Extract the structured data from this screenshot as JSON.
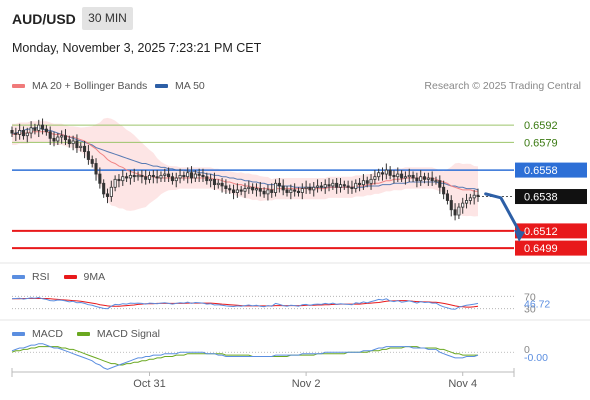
{
  "header": {
    "symbol": "AUD/USD",
    "timeframe": "30 MIN",
    "datetime": "Monday, November 3, 2025 7:23:21 PM CET"
  },
  "legend": {
    "ma20": "MA 20 + Bollinger Bands",
    "ma50": "MA 50",
    "credit": "Research © 2025 Trading Central"
  },
  "colors": {
    "ma20": "#f07a7a",
    "ma50": "#2d5fa6",
    "band_fill": "#fde0e0",
    "candle": "#333333",
    "green_level": "#9cc46a",
    "blue_level": "#2d6fd6",
    "red_level": "#e8191b",
    "current_price": "#111111",
    "rsi": "#5b8ee0",
    "rsi_ma": "#e8191b",
    "macd": "#5b8ee0",
    "macd_signal": "#6aa820"
  },
  "chart_data": [
    {
      "type": "candlestick",
      "panel": "price",
      "ylim": [
        0.649,
        0.6611
      ],
      "x_ticks": [
        {
          "label": "Oct 31",
          "index": 36
        },
        {
          "label": "Nov 2",
          "index": 77
        },
        {
          "label": "Nov 4",
          "index": 118
        }
      ],
      "levels": [
        {
          "value": 0.6592,
          "label": "0.6592",
          "style": "green"
        },
        {
          "value": 0.6579,
          "label": "0.6579",
          "style": "green"
        },
        {
          "value": 0.6558,
          "label": "0.6558",
          "style": "blue"
        },
        {
          "value": 0.6538,
          "label": "0.6538",
          "style": "current"
        },
        {
          "value": 0.6512,
          "label": "0.6512",
          "style": "red"
        },
        {
          "value": 0.6499,
          "label": "0.6499",
          "style": "red"
        }
      ],
      "forecast_arrow": {
        "from_index": 124,
        "from_value": 0.654,
        "mid_index": 128,
        "mid_value": 0.6537,
        "to_index": 133,
        "to_value": 0.6506
      },
      "close": [
        0.6586,
        0.6585,
        0.6588,
        0.6584,
        0.6586,
        0.659,
        0.6588,
        0.6592,
        0.6589,
        0.6587,
        0.6582,
        0.658,
        0.6583,
        0.6584,
        0.6581,
        0.6578,
        0.658,
        0.6575,
        0.6576,
        0.6572,
        0.6566,
        0.6563,
        0.6555,
        0.6548,
        0.654,
        0.6538,
        0.6545,
        0.6551,
        0.655,
        0.6553,
        0.6552,
        0.6554,
        0.6553,
        0.6554,
        0.6553,
        0.6551,
        0.6554,
        0.6553,
        0.6552,
        0.6554,
        0.6555,
        0.6553,
        0.655,
        0.6552,
        0.6554,
        0.6553,
        0.6556,
        0.6552,
        0.6555,
        0.6554,
        0.6553,
        0.655,
        0.6551,
        0.6547,
        0.6548,
        0.6546,
        0.6544,
        0.6543,
        0.6541,
        0.6543,
        0.6542,
        0.6544,
        0.6545,
        0.6543,
        0.6544,
        0.6542,
        0.654,
        0.6543,
        0.6541,
        0.6548,
        0.6546,
        0.6543,
        0.6541,
        0.6543,
        0.6542,
        0.6541,
        0.6544,
        0.6545,
        0.6543,
        0.6545,
        0.6546,
        0.6545,
        0.6547,
        0.6546,
        0.6548,
        0.6545,
        0.6547,
        0.6546,
        0.6545,
        0.6544,
        0.6548,
        0.6547,
        0.655,
        0.6548,
        0.6551,
        0.6553,
        0.6556,
        0.6555,
        0.6558,
        0.6554,
        0.6553,
        0.6555,
        0.6552,
        0.6553,
        0.6554,
        0.6552,
        0.655,
        0.6553,
        0.6551,
        0.6552,
        0.655,
        0.655,
        0.6545,
        0.654,
        0.6535,
        0.6528,
        0.6524,
        0.653,
        0.6533,
        0.6535,
        0.6537,
        0.6539,
        0.6538
      ],
      "ma20": [
        0.6585,
        0.6585,
        0.6586,
        0.6586,
        0.6586,
        0.6587,
        0.6587,
        0.6587,
        0.6587,
        0.6587,
        0.6586,
        0.6585,
        0.6585,
        0.6585,
        0.6584,
        0.6583,
        0.6583,
        0.6582,
        0.6581,
        0.658,
        0.6578,
        0.6576,
        0.6574,
        0.6571,
        0.6569,
        0.6566,
        0.6564,
        0.6563,
        0.6561,
        0.656,
        0.6558,
        0.6557,
        0.6556,
        0.6555,
        0.6554,
        0.6553,
        0.6553,
        0.6553,
        0.6552,
        0.6552,
        0.6552,
        0.6552,
        0.6552,
        0.6552,
        0.6552,
        0.6552,
        0.6552,
        0.6552,
        0.6552,
        0.6552,
        0.6552,
        0.6552,
        0.6552,
        0.6551,
        0.6551,
        0.655,
        0.6549,
        0.6549,
        0.6548,
        0.6547,
        0.6547,
        0.6546,
        0.6546,
        0.6545,
        0.6545,
        0.6544,
        0.6544,
        0.6544,
        0.6543,
        0.6544,
        0.6544,
        0.6544,
        0.6544,
        0.6544,
        0.6544,
        0.6544,
        0.6544,
        0.6544,
        0.6544,
        0.6544,
        0.6544,
        0.6544,
        0.6544,
        0.6545,
        0.6545,
        0.6545,
        0.6545,
        0.6545,
        0.6545,
        0.6545,
        0.6546,
        0.6546,
        0.6546,
        0.6547,
        0.6547,
        0.6548,
        0.6548,
        0.6549,
        0.655,
        0.655,
        0.6551,
        0.6551,
        0.6551,
        0.6552,
        0.6552,
        0.6552,
        0.6552,
        0.6552,
        0.6552,
        0.6552,
        0.6552,
        0.6551,
        0.655,
        0.6549,
        0.6548,
        0.6546,
        0.6545,
        0.6544,
        0.6543,
        0.6543,
        0.6543,
        0.6542,
        0.6542
      ],
      "ma50": [
        0.6585,
        0.6586,
        0.6587,
        0.6588,
        0.6589,
        0.6589,
        0.659,
        0.659,
        0.6589,
        0.6588,
        0.6588,
        0.6587,
        0.6586,
        0.6585,
        0.6584,
        0.6583,
        0.6582,
        0.6581,
        0.658,
        0.6579,
        0.6578,
        0.6577,
        0.6575,
        0.6574,
        0.6573,
        0.6572,
        0.6571,
        0.657,
        0.6569,
        0.6568,
        0.6567,
        0.6566,
        0.6565,
        0.6564,
        0.6563,
        0.6563,
        0.6562,
        0.6561,
        0.6561,
        0.656,
        0.656,
        0.6559,
        0.6559,
        0.6558,
        0.6558,
        0.6558,
        0.6557,
        0.6557,
        0.6557,
        0.6556,
        0.6556,
        0.6555,
        0.6555,
        0.6554,
        0.6554,
        0.6553,
        0.6553,
        0.6552,
        0.6552,
        0.6551,
        0.6551,
        0.655,
        0.655,
        0.6549,
        0.6549,
        0.6548,
        0.6548,
        0.6547,
        0.6547,
        0.6547,
        0.6546,
        0.6546,
        0.6546,
        0.6546,
        0.6545,
        0.6545,
        0.6545,
        0.6545,
        0.6545,
        0.6545,
        0.6545,
        0.6545,
        0.6545,
        0.6545,
        0.6545,
        0.6545,
        0.6545,
        0.6545,
        0.6545,
        0.6545,
        0.6545,
        0.6545,
        0.6545,
        0.6546,
        0.6546,
        0.6546,
        0.6546,
        0.6547,
        0.6547,
        0.6547,
        0.6548,
        0.6548,
        0.6548,
        0.6548,
        0.6549,
        0.6549,
        0.6549,
        0.6549,
        0.6549,
        0.6549,
        0.6549,
        0.6549,
        0.6548,
        0.6548,
        0.6547,
        0.6546,
        0.6546,
        0.6545,
        0.6545,
        0.6544,
        0.6544,
        0.6544,
        0.6543
      ]
    },
    {
      "type": "line",
      "panel": "rsi",
      "series_labels": [
        "RSI",
        "9MA"
      ],
      "ylim": [
        0,
        100
      ],
      "levels": [
        70,
        30
      ],
      "level_labels": [
        "70",
        "30"
      ],
      "current_label": "46.72",
      "series": [
        {
          "name": "RSI",
          "values": [
            62,
            63,
            64,
            61,
            63,
            65,
            64,
            66,
            62,
            60,
            56,
            55,
            58,
            57,
            55,
            52,
            54,
            49,
            50,
            47,
            43,
            41,
            37,
            34,
            31,
            30,
            38,
            44,
            43,
            46,
            45,
            48,
            47,
            48,
            47,
            45,
            48,
            47,
            46,
            48,
            49,
            47,
            45,
            47,
            49,
            48,
            51,
            47,
            50,
            49,
            48,
            45,
            46,
            42,
            43,
            41,
            39,
            38,
            37,
            39,
            38,
            40,
            42,
            39,
            41,
            38,
            36,
            40,
            38,
            47,
            44,
            40,
            38,
            41,
            40,
            38,
            43,
            44,
            41,
            44,
            45,
            44,
            47,
            45,
            48,
            44,
            46,
            45,
            44,
            43,
            49,
            47,
            52,
            49,
            53,
            56,
            60,
            58,
            62,
            55,
            53,
            56,
            51,
            53,
            55,
            52,
            48,
            53,
            50,
            51,
            48,
            48,
            41,
            36,
            33,
            29,
            28,
            35,
            38,
            41,
            43,
            45,
            47
          ]
        },
        {
          "name": "9MA",
          "values": [
            62,
            62,
            62,
            63,
            63,
            63,
            63,
            63,
            63,
            63,
            62,
            61,
            60,
            59,
            58,
            57,
            56,
            55,
            54,
            52,
            50,
            48,
            46,
            43,
            41,
            39,
            38,
            38,
            38,
            39,
            40,
            41,
            42,
            44,
            45,
            46,
            46,
            46,
            47,
            47,
            47,
            47,
            47,
            47,
            47,
            47,
            48,
            48,
            48,
            48,
            48,
            48,
            48,
            47,
            46,
            45,
            44,
            43,
            42,
            41,
            40,
            39,
            39,
            39,
            39,
            39,
            39,
            39,
            39,
            40,
            40,
            40,
            40,
            40,
            40,
            40,
            40,
            41,
            41,
            41,
            42,
            42,
            43,
            43,
            44,
            44,
            45,
            45,
            45,
            45,
            45,
            45,
            46,
            47,
            48,
            49,
            50,
            52,
            54,
            55,
            55,
            56,
            56,
            56,
            55,
            54,
            53,
            53,
            52,
            52,
            51,
            51,
            49,
            47,
            45,
            42,
            39,
            37,
            36,
            35,
            35,
            36,
            38
          ]
        }
      ]
    },
    {
      "type": "line",
      "panel": "macd",
      "series_labels": [
        "MACD",
        "MACD Signal"
      ],
      "ylim": [
        -0.00125,
        0.00065
      ],
      "zero_label": "0",
      "current_label": "-0.00",
      "series": [
        {
          "name": "MACD",
          "values": [
            0.0001,
            0.0002,
            0.0003,
            0.0003,
            0.0004,
            0.0005,
            0.0005,
            0.0006,
            0.0006,
            0.0005,
            0.0004,
            0.0003,
            0.0003,
            0.0002,
            0.0001,
            0.0,
            -0.0001,
            -0.0002,
            -0.0003,
            -0.0004,
            -0.0005,
            -0.0006,
            -0.0008,
            -0.0009,
            -0.0011,
            -0.0012,
            -0.0011,
            -0.001,
            -0.0009,
            -0.0008,
            -0.0007,
            -0.0006,
            -0.0005,
            -0.0004,
            -0.0004,
            -0.0003,
            -0.0003,
            -0.0002,
            -0.0002,
            -0.0002,
            -0.0001,
            -0.0001,
            -0.0001,
            -0.0001,
            0.0,
            0.0,
            0.0,
            0.0,
            0.0,
            0.0,
            0.0,
            -0.0001,
            -0.0001,
            -0.0001,
            -0.0002,
            -0.0002,
            -0.0003,
            -0.0003,
            -0.0003,
            -0.0003,
            -0.0003,
            -0.0003,
            -0.0003,
            -0.0003,
            -0.0003,
            -0.0003,
            -0.0003,
            -0.0003,
            -0.0003,
            -0.0002,
            -0.0002,
            -0.0002,
            -0.0002,
            -0.0002,
            -0.0002,
            -0.0002,
            -0.0001,
            -0.0001,
            -0.0001,
            -0.0001,
            -0.0001,
            -0.0001,
            0.0,
            0.0,
            0.0,
            0.0,
            0.0,
            0.0,
            0.0,
            0.0,
            0.0,
            0.0,
            0.0001,
            0.0001,
            0.0001,
            0.0002,
            0.0003,
            0.0003,
            0.0004,
            0.0004,
            0.0004,
            0.0004,
            0.0004,
            0.0004,
            0.0004,
            0.0003,
            0.0003,
            0.0003,
            0.0003,
            0.0002,
            0.0002,
            0.0002,
            0.0,
            -0.0001,
            -0.0002,
            -0.0003,
            -0.0004,
            -0.0004,
            -0.0004,
            -0.0003,
            -0.0003,
            -0.0003,
            -0.0002
          ]
        },
        {
          "name": "MACD Signal",
          "values": [
            0.0,
            0.0001,
            0.0001,
            0.0002,
            0.0002,
            0.0003,
            0.0003,
            0.0004,
            0.0004,
            0.0004,
            0.0004,
            0.0004,
            0.0004,
            0.0003,
            0.0003,
            0.0002,
            0.0002,
            0.0001,
            0.0,
            -0.0001,
            -0.0002,
            -0.0003,
            -0.0004,
            -0.0005,
            -0.0006,
            -0.0007,
            -0.0008,
            -0.0008,
            -0.0009,
            -0.0009,
            -0.0008,
            -0.0008,
            -0.0007,
            -0.0007,
            -0.0006,
            -0.0006,
            -0.0005,
            -0.0005,
            -0.0004,
            -0.0004,
            -0.0003,
            -0.0003,
            -0.0003,
            -0.0002,
            -0.0002,
            -0.0002,
            -0.0001,
            -0.0001,
            -0.0001,
            -0.0001,
            -0.0001,
            -0.0001,
            -0.0001,
            -0.0001,
            -0.0001,
            -0.0001,
            -0.0002,
            -0.0002,
            -0.0002,
            -0.0002,
            -0.0002,
            -0.0002,
            -0.0002,
            -0.0003,
            -0.0003,
            -0.0003,
            -0.0003,
            -0.0003,
            -0.0003,
            -0.0003,
            -0.0003,
            -0.0003,
            -0.0003,
            -0.0002,
            -0.0002,
            -0.0002,
            -0.0002,
            -0.0002,
            -0.0002,
            -0.0002,
            -0.0001,
            -0.0001,
            -0.0001,
            -0.0001,
            -0.0001,
            -0.0001,
            -0.0001,
            -0.0001,
            0.0,
            0.0,
            0.0,
            0.0,
            0.0,
            0.0,
            0.0001,
            0.0001,
            0.0001,
            0.0002,
            0.0002,
            0.0003,
            0.0003,
            0.0003,
            0.0003,
            0.0004,
            0.0004,
            0.0004,
            0.0004,
            0.0003,
            0.0003,
            0.0003,
            0.0003,
            0.0003,
            0.0002,
            0.0002,
            0.0001,
            0.0,
            -0.0001,
            -0.0001,
            -0.0002,
            -0.0002,
            -0.0002,
            -0.0002,
            -0.0002
          ]
        }
      ]
    }
  ]
}
